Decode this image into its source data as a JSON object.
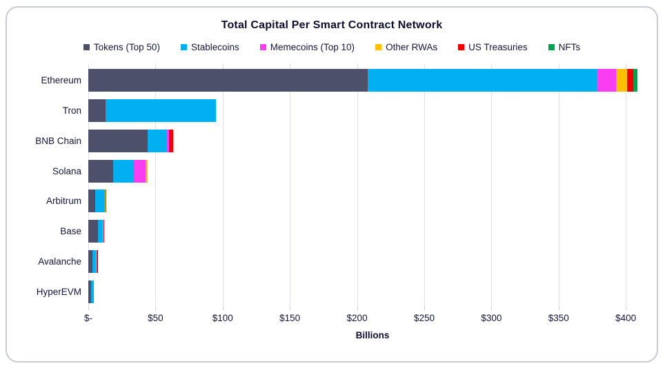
{
  "card": {
    "title": "Total Capital Per Smart Contract Network"
  },
  "chart_data": {
    "type": "bar",
    "orientation": "horizontal",
    "stacked": true,
    "title": "Total Capital Per Smart Contract Network",
    "xlabel": "Billions",
    "unit": "USD billions",
    "grid": "vertical",
    "legend_position": "top",
    "xlim": [
      0,
      422
    ],
    "x_tick_values": [
      0,
      50,
      100,
      150,
      200,
      250,
      300,
      350,
      400
    ],
    "x_tick_labels": [
      "$-",
      "$50",
      "$100",
      "$150",
      "$200",
      "$250",
      "$300",
      "$350",
      "$400"
    ],
    "categories": [
      "Ethereum",
      "Tron",
      "BNB Chain",
      "Solana",
      "Arbitrum",
      "Base",
      "Avalanche",
      "HyperEVM"
    ],
    "series": [
      {
        "name": "Tokens (Top 50)",
        "color": "#4c506a",
        "values": [
          208,
          13,
          44,
          18.5,
          5,
          7,
          3.3,
          1.8
        ]
      },
      {
        "name": "Stablecoins",
        "color": "#00b0f0",
        "values": [
          170.5,
          82,
          14,
          15.2,
          7.2,
          4,
          2.1,
          2.3
        ]
      },
      {
        "name": "Memecoins (Top 10)",
        "color": "#fb3df1",
        "values": [
          14,
          0,
          2.2,
          8.9,
          0,
          0,
          0,
          0
        ]
      },
      {
        "name": "Other RWAs",
        "color": "#ffc000",
        "values": [
          8.5,
          0,
          0,
          1.4,
          0.7,
          0.5,
          1.0,
          0
        ]
      },
      {
        "name": "US Treasuries",
        "color": "#f40000",
        "values": [
          4.5,
          0,
          2.8,
          0,
          0.6,
          0.5,
          0.9,
          0
        ]
      },
      {
        "name": "NFTs",
        "color": "#00a44f",
        "values": [
          3,
          0,
          0,
          0,
          0,
          0,
          0,
          0
        ]
      }
    ]
  }
}
